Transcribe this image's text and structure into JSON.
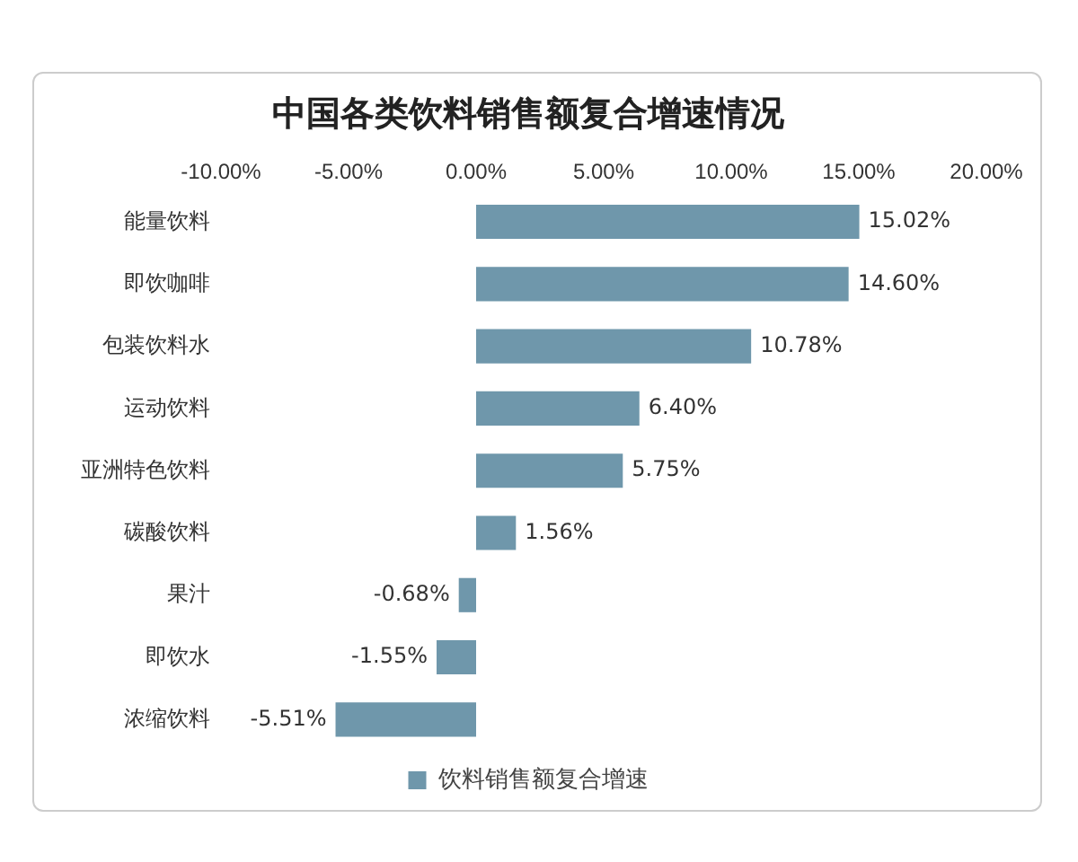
{
  "chart_data": {
    "type": "bar",
    "orientation": "horizontal",
    "title": "中国各类饮料销售额复合增速情况",
    "categories": [
      "能量饮料",
      "即饮咖啡",
      "包装饮料水",
      "运动饮料",
      "亚洲特色饮料",
      "碳酸饮料",
      "果汁",
      "即饮水",
      "浓缩饮料"
    ],
    "series": [
      {
        "name": "饮料销售额复合增速",
        "color": "#6f97ab",
        "values": [
          15.02,
          14.6,
          10.78,
          6.4,
          5.75,
          1.56,
          -0.68,
          -1.55,
          -5.51
        ],
        "value_labels": [
          "15.02%",
          "14.60%",
          "10.78%",
          "6.40%",
          "5.75%",
          "1.56%",
          "-0.68%",
          "-1.55%",
          "-5.51%"
        ]
      }
    ],
    "xlim": [
      -10,
      20
    ],
    "xticks": [
      {
        "value": -10,
        "label": "-10.00%"
      },
      {
        "value": -5,
        "label": "-5.00%"
      },
      {
        "value": 0,
        "label": "0.00%"
      },
      {
        "value": 5,
        "label": "5.00%"
      },
      {
        "value": 10,
        "label": "10.00%"
      },
      {
        "value": 15,
        "label": "15.00%"
      },
      {
        "value": 20,
        "label": "20.00%"
      }
    ],
    "grid": false,
    "legend": "bottom"
  }
}
